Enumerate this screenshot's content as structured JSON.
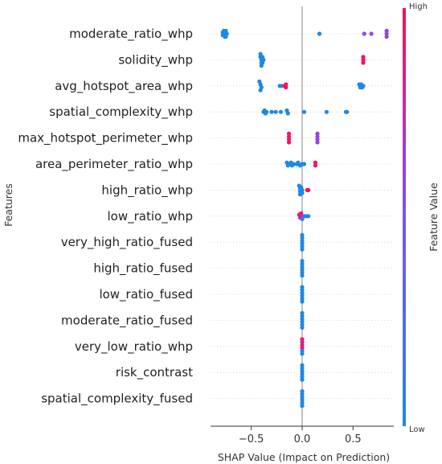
{
  "chart_data": {
    "type": "scatter",
    "title": "",
    "xlabel": "SHAP Value (Impact on Prediction)",
    "ylabel": "Features",
    "xlim": [
      -0.9,
      0.9
    ],
    "xticks": [
      -0.5,
      0.0,
      0.5
    ],
    "xtick_labels": [
      "−0.5",
      "0.0",
      "0.5"
    ],
    "zero_line": true,
    "grid": false,
    "colorbar": {
      "label": "Feature Value",
      "high_label": "High",
      "low_label": "Low",
      "low_color": "#1e88e5",
      "high_color": "#ff0d57"
    },
    "features": [
      {
        "name": "moderate_ratio_whp",
        "points": [
          {
            "x": -0.78,
            "v": 0.0
          },
          {
            "x": -0.78,
            "v": 0.0
          },
          {
            "x": -0.77,
            "v": 0.0
          },
          {
            "x": -0.76,
            "v": 0.0
          },
          {
            "x": -0.76,
            "v": 0.0
          },
          {
            "x": -0.75,
            "v": 0.0
          },
          {
            "x": -0.74,
            "v": 0.0
          },
          {
            "x": -0.75,
            "v": 0.0
          },
          {
            "x": 0.17,
            "v": 0.0
          },
          {
            "x": 0.61,
            "v": 0.55
          },
          {
            "x": 0.68,
            "v": 0.55
          },
          {
            "x": 0.83,
            "v": 0.6
          },
          {
            "x": 0.83,
            "v": 0.55
          },
          {
            "x": 0.83,
            "v": 0.6
          }
        ]
      },
      {
        "name": "solidity_whp",
        "points": [
          {
            "x": -0.41,
            "v": 0.0
          },
          {
            "x": -0.41,
            "v": 0.0
          },
          {
            "x": -0.4,
            "v": 0.0
          },
          {
            "x": -0.4,
            "v": 0.0
          },
          {
            "x": -0.39,
            "v": 0.0
          },
          {
            "x": -0.38,
            "v": 0.0
          },
          {
            "x": -0.39,
            "v": 0.0
          },
          {
            "x": -0.4,
            "v": 0.0
          },
          {
            "x": 0.6,
            "v": 1.0
          },
          {
            "x": 0.6,
            "v": 1.0
          },
          {
            "x": 0.6,
            "v": 1.0
          }
        ]
      },
      {
        "name": "avg_hotspot_area_whp",
        "points": [
          {
            "x": -0.42,
            "v": 0.0
          },
          {
            "x": -0.41,
            "v": 0.0
          },
          {
            "x": -0.4,
            "v": 0.0
          },
          {
            "x": -0.41,
            "v": 0.0
          },
          {
            "x": -0.22,
            "v": 0.0
          },
          {
            "x": -0.2,
            "v": 0.15
          },
          {
            "x": -0.16,
            "v": 1.0
          },
          {
            "x": -0.16,
            "v": 1.0
          },
          {
            "x": -0.17,
            "v": 1.0
          },
          {
            "x": 0.56,
            "v": 0.0
          },
          {
            "x": 0.57,
            "v": 0.0
          },
          {
            "x": 0.58,
            "v": 0.0
          },
          {
            "x": 0.59,
            "v": 0.0
          },
          {
            "x": 0.6,
            "v": 0.0
          }
        ]
      },
      {
        "name": "spatial_complexity_whp",
        "points": [
          {
            "x": -0.38,
            "v": 0.0
          },
          {
            "x": -0.37,
            "v": 0.0
          },
          {
            "x": -0.36,
            "v": 0.0
          },
          {
            "x": -0.35,
            "v": 0.0
          },
          {
            "x": -0.3,
            "v": 0.0
          },
          {
            "x": -0.26,
            "v": 0.0
          },
          {
            "x": -0.21,
            "v": 0.0
          },
          {
            "x": -0.15,
            "v": 0.0
          },
          {
            "x": -0.14,
            "v": 0.0
          },
          {
            "x": 0.02,
            "v": 0.0
          },
          {
            "x": 0.24,
            "v": 0.0
          },
          {
            "x": 0.43,
            "v": 0.0
          },
          {
            "x": 0.44,
            "v": 0.0
          }
        ]
      },
      {
        "name": "max_hotspot_perimeter_whp",
        "points": [
          {
            "x": -0.13,
            "v": 0.95
          },
          {
            "x": -0.13,
            "v": 0.95
          },
          {
            "x": -0.13,
            "v": 0.95
          },
          {
            "x": -0.13,
            "v": 0.95
          },
          {
            "x": 0.15,
            "v": 0.6
          },
          {
            "x": 0.15,
            "v": 0.6
          },
          {
            "x": 0.15,
            "v": 0.6
          },
          {
            "x": 0.15,
            "v": 0.6
          }
        ]
      },
      {
        "name": "area_perimeter_ratio_whp",
        "points": [
          {
            "x": -0.15,
            "v": 0.0
          },
          {
            "x": -0.14,
            "v": 0.0
          },
          {
            "x": -0.12,
            "v": 0.0
          },
          {
            "x": -0.11,
            "v": 0.0
          },
          {
            "x": -0.1,
            "v": 0.0
          },
          {
            "x": -0.08,
            "v": 0.0
          },
          {
            "x": -0.05,
            "v": 0.0
          },
          {
            "x": -0.04,
            "v": 0.0
          },
          {
            "x": -0.02,
            "v": 0.0
          },
          {
            "x": 0.0,
            "v": 0.0
          },
          {
            "x": 0.02,
            "v": 0.0
          },
          {
            "x": 0.13,
            "v": 1.0
          },
          {
            "x": 0.13,
            "v": 1.0
          }
        ]
      },
      {
        "name": "high_ratio_whp",
        "points": [
          {
            "x": -0.03,
            "v": 0.0
          },
          {
            "x": -0.02,
            "v": 0.0
          },
          {
            "x": -0.02,
            "v": 0.0
          },
          {
            "x": -0.01,
            "v": 0.0
          },
          {
            "x": 0.0,
            "v": 0.0
          },
          {
            "x": 0.0,
            "v": 0.0
          },
          {
            "x": -0.02,
            "v": 0.0
          },
          {
            "x": 0.05,
            "v": 1.0
          },
          {
            "x": 0.06,
            "v": 1.0
          }
        ]
      },
      {
        "name": "low_ratio_whp",
        "points": [
          {
            "x": -0.03,
            "v": 0.8
          },
          {
            "x": -0.02,
            "v": 0.9
          },
          {
            "x": -0.01,
            "v": 0.85
          },
          {
            "x": 0.0,
            "v": 0.9
          },
          {
            "x": 0.0,
            "v": 0.0
          },
          {
            "x": 0.02,
            "v": 0.3
          },
          {
            "x": 0.04,
            "v": 0.0
          },
          {
            "x": 0.06,
            "v": 0.0
          }
        ]
      },
      {
        "name": "very_high_ratio_fused",
        "points": [
          {
            "x": 0.0,
            "v": 0.0
          },
          {
            "x": 0.0,
            "v": 0.0
          },
          {
            "x": 0.0,
            "v": 0.0
          },
          {
            "x": 0.0,
            "v": 0.0
          },
          {
            "x": 0.0,
            "v": 0.0
          },
          {
            "x": 0.0,
            "v": 0.0
          }
        ]
      },
      {
        "name": "high_ratio_fused",
        "points": [
          {
            "x": 0.0,
            "v": 0.0
          },
          {
            "x": 0.0,
            "v": 0.0
          },
          {
            "x": 0.0,
            "v": 0.0
          },
          {
            "x": 0.0,
            "v": 0.0
          },
          {
            "x": 0.0,
            "v": 0.0
          },
          {
            "x": 0.0,
            "v": 0.0
          }
        ]
      },
      {
        "name": "low_ratio_fused",
        "points": [
          {
            "x": 0.0,
            "v": 0.0
          },
          {
            "x": 0.0,
            "v": 0.0
          },
          {
            "x": 0.0,
            "v": 0.0
          },
          {
            "x": 0.0,
            "v": 0.0
          },
          {
            "x": 0.0,
            "v": 0.0
          },
          {
            "x": 0.0,
            "v": 0.0
          }
        ]
      },
      {
        "name": "moderate_ratio_fused",
        "points": [
          {
            "x": 0.0,
            "v": 0.0
          },
          {
            "x": 0.0,
            "v": 0.0
          },
          {
            "x": 0.0,
            "v": 0.0
          },
          {
            "x": 0.0,
            "v": 0.0
          },
          {
            "x": 0.0,
            "v": 0.0
          },
          {
            "x": 0.0,
            "v": 0.0
          }
        ]
      },
      {
        "name": "very_low_ratio_whp",
        "points": [
          {
            "x": 0.0,
            "v": 0.9
          },
          {
            "x": 0.0,
            "v": 0.9
          },
          {
            "x": 0.0,
            "v": 0.9
          },
          {
            "x": 0.0,
            "v": 0.9
          },
          {
            "x": 0.0,
            "v": 0.0
          },
          {
            "x": 0.0,
            "v": 0.0
          }
        ]
      },
      {
        "name": "risk_contrast",
        "points": [
          {
            "x": 0.0,
            "v": 0.0
          },
          {
            "x": 0.0,
            "v": 0.0
          },
          {
            "x": 0.0,
            "v": 0.0
          },
          {
            "x": 0.0,
            "v": 0.0
          },
          {
            "x": 0.0,
            "v": 0.0
          },
          {
            "x": 0.0,
            "v": 0.0
          }
        ]
      },
      {
        "name": "spatial_complexity_fused",
        "points": [
          {
            "x": 0.0,
            "v": 0.0
          },
          {
            "x": 0.0,
            "v": 0.0
          },
          {
            "x": 0.0,
            "v": 0.0
          },
          {
            "x": 0.0,
            "v": 0.0
          },
          {
            "x": 0.0,
            "v": 0.0
          },
          {
            "x": 0.0,
            "v": 0.0
          }
        ]
      }
    ]
  }
}
